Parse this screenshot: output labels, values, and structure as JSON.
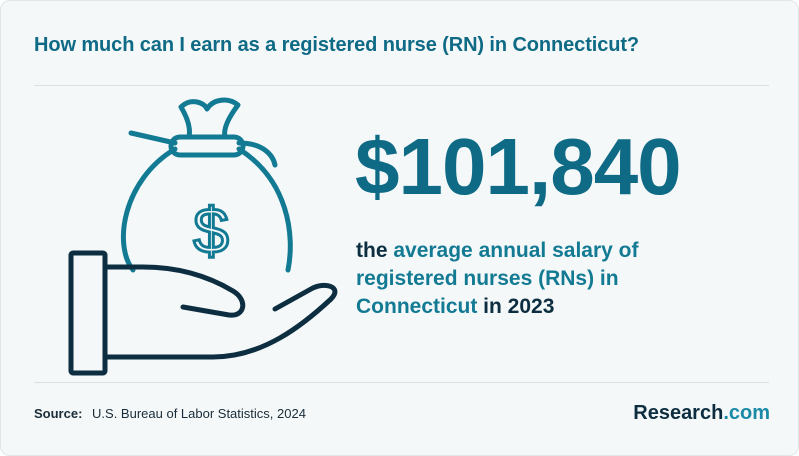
{
  "header": {
    "title": "How much can I earn as a registered nurse (RN) in Connecticut?"
  },
  "stat": {
    "amount": "$101,840",
    "desc_part1": "the ",
    "desc_highlight1": "average annual salary of registered nurses (RNs) in Connecticut",
    "desc_part2": " in 2023"
  },
  "illustration": {
    "icon": "money-bag-in-hand-icon",
    "symbol": "$"
  },
  "footer": {
    "source_label": "Source:",
    "source_text": "U.S. Bureau of Labor Statistics, 2024",
    "brand_name": "Research",
    "brand_tld": ".com"
  },
  "colors": {
    "accent": "#0f6a85",
    "dark": "#0d2e40",
    "background": "#f4f8f9"
  }
}
